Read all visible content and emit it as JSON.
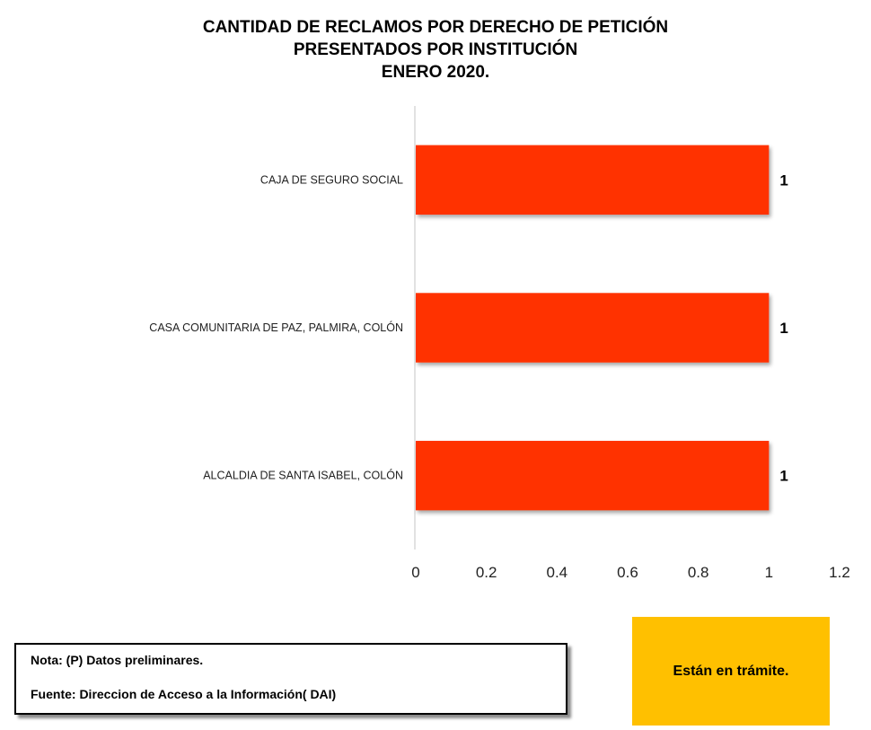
{
  "chart_data": {
    "type": "bar",
    "orientation": "horizontal",
    "title_lines": [
      "CANTIDAD DE RECLAMOS POR DERECHO DE PETICIÓN",
      "PRESENTADOS POR INSTITUCIÓN",
      "ENERO 2020."
    ],
    "categories": [
      "CAJA DE SEGURO SOCIAL",
      "CASA COMUNITARIA DE PAZ, PALMIRA, COLÓN",
      "ALCALDIA DE  SANTA ISABEL, COLÓN"
    ],
    "values": [
      1,
      1,
      1
    ],
    "data_labels": [
      "1",
      "1",
      "1"
    ],
    "xlim": [
      0,
      1.2
    ],
    "x_ticks": [
      0,
      0.2,
      0.4,
      0.6,
      0.8,
      1,
      1.2
    ],
    "x_tick_labels": [
      "0",
      "0.2",
      "0.4",
      "0.6",
      "0.8",
      "1",
      "1.2"
    ],
    "grid": false,
    "legend": "none",
    "bar_color": "#ff3300"
  },
  "note": {
    "line1": "Nota:  (P) Datos preliminares.",
    "line2": "Fuente: Direccion de Acceso  a la Información( DAI)"
  },
  "status": {
    "text": "Están en trámite.",
    "color": "#ffc000"
  }
}
